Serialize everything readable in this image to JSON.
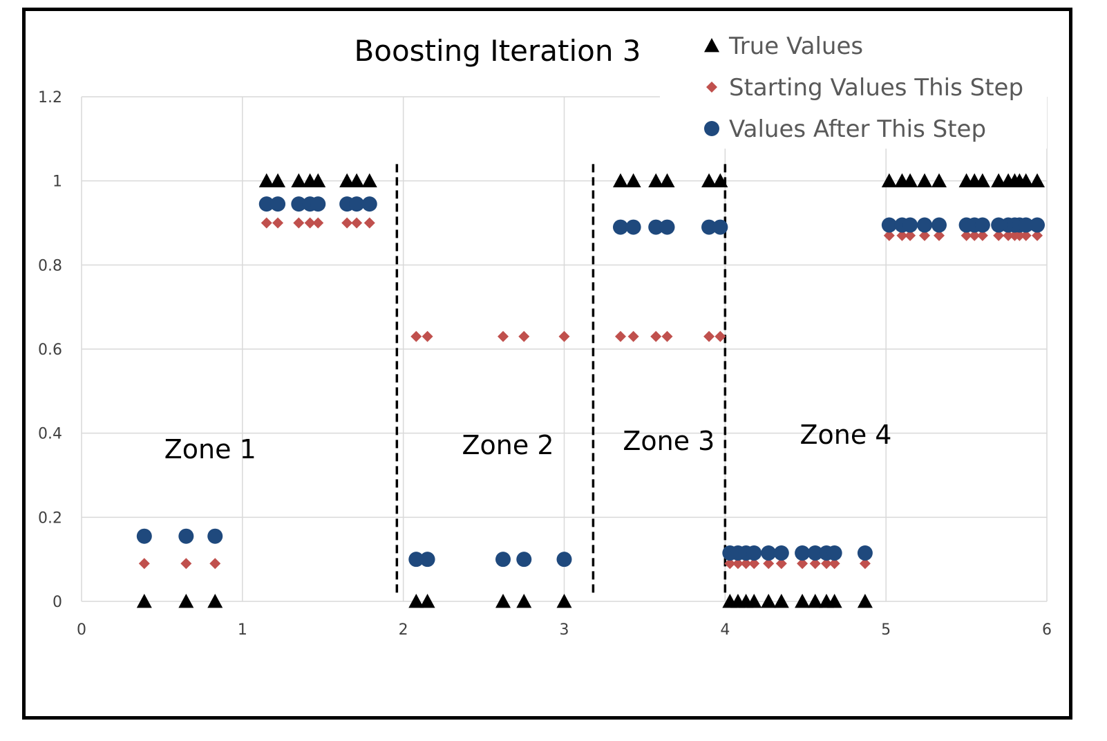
{
  "chart_data": {
    "type": "scatter",
    "title": "Boosting Iteration 3",
    "xlim": [
      0,
      6
    ],
    "ylim": [
      0,
      1.2
    ],
    "x_ticks": [
      "0",
      "1",
      "2",
      "3",
      "4",
      "5",
      "6"
    ],
    "y_ticks": [
      "0",
      "0.2",
      "0.4",
      "0.6",
      "0.8",
      "1",
      "1.2"
    ],
    "grid": true,
    "legend_position": "top-right",
    "zone_boundaries": [
      1.96,
      3.18,
      4.0
    ],
    "zones": [
      {
        "label": "Zone 1",
        "x": 0.8,
        "y": 0.34
      },
      {
        "label": "Zone 2",
        "x": 2.65,
        "y": 0.35
      },
      {
        "label": "Zone 3",
        "x": 3.65,
        "y": 0.36
      },
      {
        "label": "Zone 4",
        "x": 4.75,
        "y": 0.375
      }
    ],
    "series": [
      {
        "name": "True Values",
        "marker": "triangle",
        "color": "#000000",
        "x": [
          0.39,
          0.65,
          0.83,
          1.15,
          1.22,
          1.35,
          1.42,
          1.47,
          1.65,
          1.71,
          1.79,
          2.08,
          2.15,
          2.62,
          2.75,
          3.0,
          3.35,
          3.43,
          3.57,
          3.64,
          3.9,
          3.97,
          4.03,
          4.08,
          4.13,
          4.18,
          4.27,
          4.35,
          4.48,
          4.56,
          4.63,
          4.68,
          4.87,
          5.02,
          5.1,
          5.15,
          5.24,
          5.33,
          5.5,
          5.55,
          5.6,
          5.7,
          5.76,
          5.8,
          5.83,
          5.87,
          5.94
        ],
        "y": [
          0,
          0,
          0,
          1,
          1,
          1,
          1,
          1,
          1,
          1,
          1,
          0,
          0,
          0,
          0,
          0,
          1,
          1,
          1,
          1,
          1,
          1,
          0,
          0,
          0,
          0,
          0,
          0,
          0,
          0,
          0,
          0,
          0,
          1,
          1,
          1,
          1,
          1,
          1,
          1,
          1,
          1,
          1,
          1,
          1,
          1,
          1
        ]
      },
      {
        "name": "Starting Values This Step",
        "marker": "diamond",
        "color": "#c0504d",
        "x": [
          0.39,
          0.65,
          0.83,
          1.15,
          1.22,
          1.35,
          1.42,
          1.47,
          1.65,
          1.71,
          1.79,
          2.08,
          2.15,
          2.62,
          2.75,
          3.0,
          3.35,
          3.43,
          3.57,
          3.64,
          3.9,
          3.97,
          4.03,
          4.08,
          4.13,
          4.18,
          4.27,
          4.35,
          4.48,
          4.56,
          4.63,
          4.68,
          4.87,
          5.02,
          5.1,
          5.15,
          5.24,
          5.33,
          5.5,
          5.55,
          5.6,
          5.7,
          5.76,
          5.8,
          5.83,
          5.87,
          5.94
        ],
        "y": [
          0.09,
          0.09,
          0.09,
          0.9,
          0.9,
          0.9,
          0.9,
          0.9,
          0.9,
          0.9,
          0.9,
          0.63,
          0.63,
          0.63,
          0.63,
          0.63,
          0.63,
          0.63,
          0.63,
          0.63,
          0.63,
          0.63,
          0.09,
          0.09,
          0.09,
          0.09,
          0.09,
          0.09,
          0.09,
          0.09,
          0.09,
          0.09,
          0.09,
          0.87,
          0.87,
          0.87,
          0.87,
          0.87,
          0.87,
          0.87,
          0.87,
          0.87,
          0.87,
          0.87,
          0.87,
          0.87,
          0.87
        ]
      },
      {
        "name": "Values After This Step",
        "marker": "circle",
        "color": "#1f497d",
        "x": [
          0.39,
          0.65,
          0.83,
          1.15,
          1.22,
          1.35,
          1.42,
          1.47,
          1.65,
          1.71,
          1.79,
          2.08,
          2.15,
          2.62,
          2.75,
          3.0,
          3.35,
          3.43,
          3.57,
          3.64,
          3.9,
          3.97,
          4.03,
          4.08,
          4.13,
          4.18,
          4.27,
          4.35,
          4.48,
          4.56,
          4.63,
          4.68,
          4.87,
          5.02,
          5.1,
          5.15,
          5.24,
          5.33,
          5.5,
          5.55,
          5.6,
          5.7,
          5.76,
          5.8,
          5.83,
          5.87,
          5.94
        ],
        "y": [
          0.155,
          0.155,
          0.155,
          0.945,
          0.945,
          0.945,
          0.945,
          0.945,
          0.945,
          0.945,
          0.945,
          0.1,
          0.1,
          0.1,
          0.1,
          0.1,
          0.89,
          0.89,
          0.89,
          0.89,
          0.89,
          0.89,
          0.115,
          0.115,
          0.115,
          0.115,
          0.115,
          0.115,
          0.115,
          0.115,
          0.115,
          0.115,
          0.115,
          0.895,
          0.895,
          0.895,
          0.895,
          0.895,
          0.895,
          0.895,
          0.895,
          0.895,
          0.895,
          0.895,
          0.895,
          0.895,
          0.895
        ]
      }
    ]
  }
}
